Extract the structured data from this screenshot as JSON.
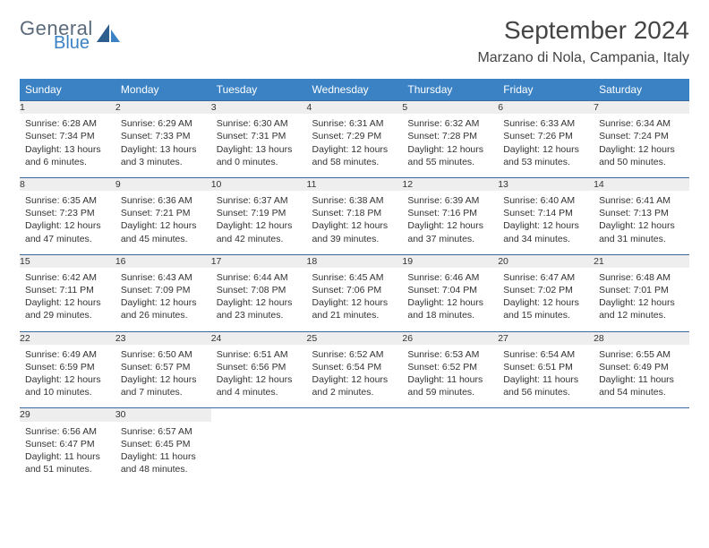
{
  "logo": {
    "general": "General",
    "blue": "Blue"
  },
  "title": "September 2024",
  "location": "Marzano di Nola, Campania, Italy",
  "colors": {
    "header_bg": "#3b82c4",
    "header_text": "#ffffff",
    "daynum_bg": "#eeeeee",
    "border": "#3b6a9a",
    "logo_gray": "#5a6a7a",
    "logo_blue": "#3b82c4"
  },
  "weekdays": [
    "Sunday",
    "Monday",
    "Tuesday",
    "Wednesday",
    "Thursday",
    "Friday",
    "Saturday"
  ],
  "weeks": [
    [
      {
        "n": "1",
        "sr": "Sunrise: 6:28 AM",
        "ss": "Sunset: 7:34 PM",
        "dl": "Daylight: 13 hours and 6 minutes."
      },
      {
        "n": "2",
        "sr": "Sunrise: 6:29 AM",
        "ss": "Sunset: 7:33 PM",
        "dl": "Daylight: 13 hours and 3 minutes."
      },
      {
        "n": "3",
        "sr": "Sunrise: 6:30 AM",
        "ss": "Sunset: 7:31 PM",
        "dl": "Daylight: 13 hours and 0 minutes."
      },
      {
        "n": "4",
        "sr": "Sunrise: 6:31 AM",
        "ss": "Sunset: 7:29 PM",
        "dl": "Daylight: 12 hours and 58 minutes."
      },
      {
        "n": "5",
        "sr": "Sunrise: 6:32 AM",
        "ss": "Sunset: 7:28 PM",
        "dl": "Daylight: 12 hours and 55 minutes."
      },
      {
        "n": "6",
        "sr": "Sunrise: 6:33 AM",
        "ss": "Sunset: 7:26 PM",
        "dl": "Daylight: 12 hours and 53 minutes."
      },
      {
        "n": "7",
        "sr": "Sunrise: 6:34 AM",
        "ss": "Sunset: 7:24 PM",
        "dl": "Daylight: 12 hours and 50 minutes."
      }
    ],
    [
      {
        "n": "8",
        "sr": "Sunrise: 6:35 AM",
        "ss": "Sunset: 7:23 PM",
        "dl": "Daylight: 12 hours and 47 minutes."
      },
      {
        "n": "9",
        "sr": "Sunrise: 6:36 AM",
        "ss": "Sunset: 7:21 PM",
        "dl": "Daylight: 12 hours and 45 minutes."
      },
      {
        "n": "10",
        "sr": "Sunrise: 6:37 AM",
        "ss": "Sunset: 7:19 PM",
        "dl": "Daylight: 12 hours and 42 minutes."
      },
      {
        "n": "11",
        "sr": "Sunrise: 6:38 AM",
        "ss": "Sunset: 7:18 PM",
        "dl": "Daylight: 12 hours and 39 minutes."
      },
      {
        "n": "12",
        "sr": "Sunrise: 6:39 AM",
        "ss": "Sunset: 7:16 PM",
        "dl": "Daylight: 12 hours and 37 minutes."
      },
      {
        "n": "13",
        "sr": "Sunrise: 6:40 AM",
        "ss": "Sunset: 7:14 PM",
        "dl": "Daylight: 12 hours and 34 minutes."
      },
      {
        "n": "14",
        "sr": "Sunrise: 6:41 AM",
        "ss": "Sunset: 7:13 PM",
        "dl": "Daylight: 12 hours and 31 minutes."
      }
    ],
    [
      {
        "n": "15",
        "sr": "Sunrise: 6:42 AM",
        "ss": "Sunset: 7:11 PM",
        "dl": "Daylight: 12 hours and 29 minutes."
      },
      {
        "n": "16",
        "sr": "Sunrise: 6:43 AM",
        "ss": "Sunset: 7:09 PM",
        "dl": "Daylight: 12 hours and 26 minutes."
      },
      {
        "n": "17",
        "sr": "Sunrise: 6:44 AM",
        "ss": "Sunset: 7:08 PM",
        "dl": "Daylight: 12 hours and 23 minutes."
      },
      {
        "n": "18",
        "sr": "Sunrise: 6:45 AM",
        "ss": "Sunset: 7:06 PM",
        "dl": "Daylight: 12 hours and 21 minutes."
      },
      {
        "n": "19",
        "sr": "Sunrise: 6:46 AM",
        "ss": "Sunset: 7:04 PM",
        "dl": "Daylight: 12 hours and 18 minutes."
      },
      {
        "n": "20",
        "sr": "Sunrise: 6:47 AM",
        "ss": "Sunset: 7:02 PM",
        "dl": "Daylight: 12 hours and 15 minutes."
      },
      {
        "n": "21",
        "sr": "Sunrise: 6:48 AM",
        "ss": "Sunset: 7:01 PM",
        "dl": "Daylight: 12 hours and 12 minutes."
      }
    ],
    [
      {
        "n": "22",
        "sr": "Sunrise: 6:49 AM",
        "ss": "Sunset: 6:59 PM",
        "dl": "Daylight: 12 hours and 10 minutes."
      },
      {
        "n": "23",
        "sr": "Sunrise: 6:50 AM",
        "ss": "Sunset: 6:57 PM",
        "dl": "Daylight: 12 hours and 7 minutes."
      },
      {
        "n": "24",
        "sr": "Sunrise: 6:51 AM",
        "ss": "Sunset: 6:56 PM",
        "dl": "Daylight: 12 hours and 4 minutes."
      },
      {
        "n": "25",
        "sr": "Sunrise: 6:52 AM",
        "ss": "Sunset: 6:54 PM",
        "dl": "Daylight: 12 hours and 2 minutes."
      },
      {
        "n": "26",
        "sr": "Sunrise: 6:53 AM",
        "ss": "Sunset: 6:52 PM",
        "dl": "Daylight: 11 hours and 59 minutes."
      },
      {
        "n": "27",
        "sr": "Sunrise: 6:54 AM",
        "ss": "Sunset: 6:51 PM",
        "dl": "Daylight: 11 hours and 56 minutes."
      },
      {
        "n": "28",
        "sr": "Sunrise: 6:55 AM",
        "ss": "Sunset: 6:49 PM",
        "dl": "Daylight: 11 hours and 54 minutes."
      }
    ],
    [
      {
        "n": "29",
        "sr": "Sunrise: 6:56 AM",
        "ss": "Sunset: 6:47 PM",
        "dl": "Daylight: 11 hours and 51 minutes."
      },
      {
        "n": "30",
        "sr": "Sunrise: 6:57 AM",
        "ss": "Sunset: 6:45 PM",
        "dl": "Daylight: 11 hours and 48 minutes."
      },
      null,
      null,
      null,
      null,
      null
    ]
  ]
}
